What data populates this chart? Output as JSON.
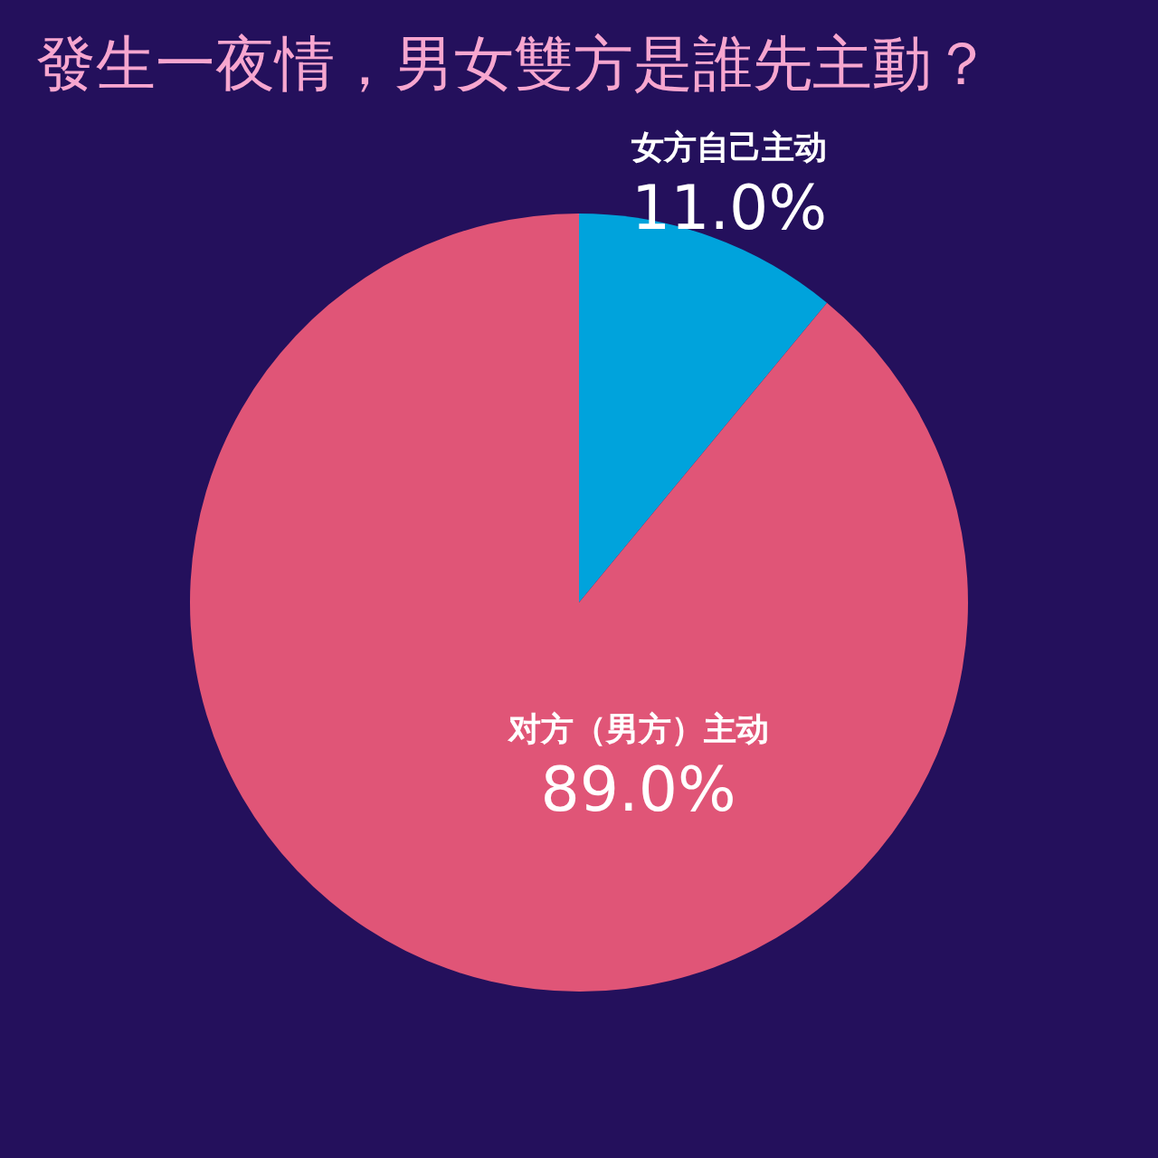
{
  "chart_data": {
    "type": "pie",
    "title": "發生一夜情，男女雙方是誰先主動？",
    "categories": [
      "女方自己主动",
      "对方（男方）主动"
    ],
    "values": [
      11.0,
      89.0
    ],
    "colors": [
      "#00a3dc",
      "#e05577"
    ],
    "value_labels": [
      "11.0%",
      "89.0%"
    ]
  }
}
